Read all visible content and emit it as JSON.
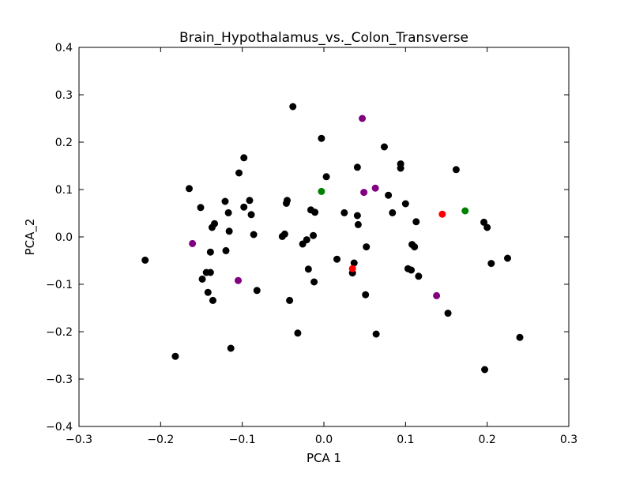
{
  "chart_data": {
    "type": "scatter",
    "title": "Brain_Hypothalamus_vs._Colon_Transverse",
    "xlabel": "PCA 1",
    "ylabel": "PCA_2",
    "xlim": [
      -0.3,
      0.3
    ],
    "ylim": [
      -0.4,
      0.4
    ],
    "x_ticks": [
      -0.3,
      -0.2,
      -0.1,
      0.0,
      0.1,
      0.2,
      0.3
    ],
    "x_tick_labels": [
      "−0.3",
      "−0.2",
      "−0.1",
      "0.0",
      "0.1",
      "0.2",
      "0.3"
    ],
    "y_ticks": [
      -0.4,
      -0.3,
      -0.2,
      -0.1,
      0.0,
      0.1,
      0.2,
      0.3,
      0.4
    ],
    "y_tick_labels": [
      "−0.4",
      "−0.3",
      "−0.2",
      "−0.1",
      "0.0",
      "0.1",
      "0.2",
      "0.3",
      "0.4"
    ],
    "grid": false,
    "legend": "none",
    "series": [
      {
        "color": "#000000",
        "points": [
          [
            -0.219,
            -0.049
          ],
          [
            -0.182,
            -0.252
          ],
          [
            -0.165,
            0.102
          ],
          [
            -0.151,
            0.062
          ],
          [
            -0.149,
            -0.089
          ],
          [
            -0.144,
            -0.075
          ],
          [
            -0.142,
            -0.117
          ],
          [
            -0.139,
            -0.075
          ],
          [
            -0.139,
            -0.032
          ],
          [
            -0.137,
            0.02
          ],
          [
            -0.136,
            -0.134
          ],
          [
            -0.134,
            0.028
          ],
          [
            -0.121,
            0.075
          ],
          [
            -0.12,
            -0.029
          ],
          [
            -0.117,
            0.051
          ],
          [
            -0.116,
            0.012
          ],
          [
            -0.114,
            -0.235
          ],
          [
            -0.104,
            0.135
          ],
          [
            -0.098,
            0.167
          ],
          [
            -0.098,
            0.063
          ],
          [
            -0.091,
            0.077
          ],
          [
            -0.089,
            0.047
          ],
          [
            -0.086,
            0.005
          ],
          [
            -0.082,
            -0.113
          ],
          [
            -0.051,
            0.001
          ],
          [
            -0.048,
            0.006
          ],
          [
            -0.046,
            0.071
          ],
          [
            -0.045,
            0.077
          ],
          [
            -0.042,
            -0.134
          ],
          [
            -0.038,
            0.275
          ],
          [
            -0.032,
            -0.203
          ],
          [
            -0.026,
            -0.015
          ],
          [
            -0.021,
            -0.006
          ],
          [
            -0.019,
            -0.068
          ],
          [
            -0.016,
            0.057
          ],
          [
            -0.013,
            0.003
          ],
          [
            -0.012,
            -0.095
          ],
          [
            -0.011,
            0.052
          ],
          [
            -0.003,
            0.208
          ],
          [
            0.003,
            0.127
          ],
          [
            0.016,
            -0.047
          ],
          [
            0.025,
            0.051
          ],
          [
            0.035,
            -0.076
          ],
          [
            0.037,
            -0.055
          ],
          [
            0.041,
            0.147
          ],
          [
            0.041,
            0.045
          ],
          [
            0.042,
            0.026
          ],
          [
            0.051,
            -0.122
          ],
          [
            0.052,
            -0.021
          ],
          [
            0.064,
            -0.205
          ],
          [
            0.074,
            0.19
          ],
          [
            0.079,
            0.088
          ],
          [
            0.084,
            0.051
          ],
          [
            0.094,
            0.154
          ],
          [
            0.094,
            0.145
          ],
          [
            0.1,
            0.07
          ],
          [
            0.103,
            -0.067
          ],
          [
            0.107,
            -0.07
          ],
          [
            0.108,
            -0.016
          ],
          [
            0.111,
            -0.021
          ],
          [
            0.113,
            0.032
          ],
          [
            0.116,
            -0.083
          ],
          [
            0.152,
            -0.161
          ],
          [
            0.162,
            0.142
          ],
          [
            0.196,
            0.031
          ],
          [
            0.197,
            -0.28
          ],
          [
            0.2,
            0.02
          ],
          [
            0.205,
            -0.056
          ],
          [
            0.225,
            -0.045
          ],
          [
            0.24,
            -0.212
          ]
        ]
      },
      {
        "color": "#800080",
        "points": [
          [
            -0.161,
            -0.014
          ],
          [
            -0.105,
            -0.092
          ],
          [
            0.047,
            0.25
          ],
          [
            0.049,
            0.094
          ],
          [
            0.063,
            0.103
          ],
          [
            0.138,
            -0.124
          ]
        ]
      },
      {
        "color": "#008000",
        "points": [
          [
            -0.003,
            0.096
          ],
          [
            0.173,
            0.055
          ]
        ]
      },
      {
        "color": "#ff0000",
        "points": [
          [
            0.035,
            -0.067
          ],
          [
            0.145,
            0.048
          ]
        ]
      }
    ]
  }
}
